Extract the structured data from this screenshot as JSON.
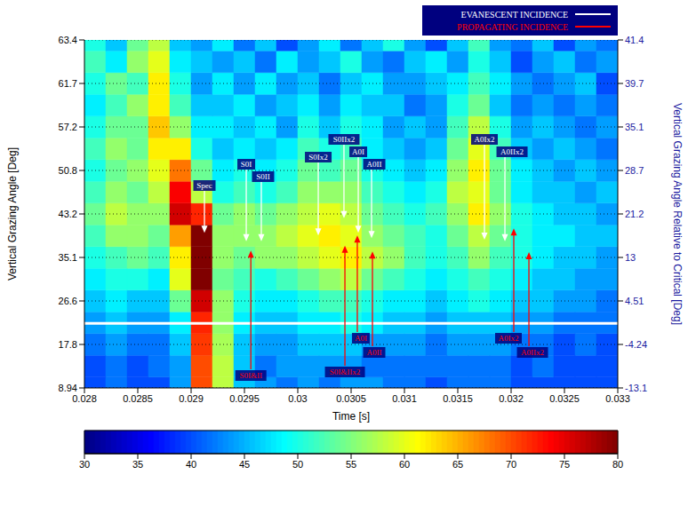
{
  "chart_data": {
    "type": "heatmap",
    "x_label": "Time [s]",
    "y_label": "Vertical Grazing Angle [Deg]",
    "y2_label": "Vertical Grazing Angle Relative to Critical [Deg]",
    "xlim": [
      0.028,
      0.033
    ],
    "xticks": [
      0.028,
      0.0285,
      0.029,
      0.0295,
      0.03,
      0.0305,
      0.031,
      0.0315,
      0.032,
      0.0325,
      0.033
    ],
    "x": [
      0.0281,
      0.0283,
      0.0285,
      0.0287,
      0.0289,
      0.0291,
      0.0293,
      0.0295,
      0.0297,
      0.0299,
      0.0301,
      0.0303,
      0.0305,
      0.0307,
      0.0309,
      0.0311,
      0.0313,
      0.0315,
      0.0317,
      0.0319,
      0.0321,
      0.0323,
      0.0325,
      0.0327,
      0.0329
    ],
    "y_categories": [
      "8.94",
      null,
      "17.8",
      null,
      "26.6",
      null,
      "35.1",
      null,
      "43.2",
      null,
      "50.8",
      null,
      "57.2",
      null,
      "61.7",
      null,
      "63.4"
    ],
    "y2_categories": [
      "-13.1",
      null,
      "-4.24",
      null,
      "4.51",
      null,
      "13",
      null,
      "21.2",
      null,
      "28.7",
      null,
      "35.1",
      null,
      "39.7",
      null,
      "41.4"
    ],
    "cells": [
      [
        40,
        42,
        40,
        40,
        44,
        70,
        58,
        46,
        44,
        42,
        44,
        42,
        44,
        44,
        42,
        42,
        40,
        42,
        42,
        42,
        40,
        40,
        40,
        40,
        40
      ],
      [
        40,
        42,
        40,
        42,
        44,
        70,
        58,
        46,
        42,
        44,
        44,
        44,
        44,
        42,
        42,
        42,
        42,
        42,
        42,
        42,
        40,
        42,
        40,
        40,
        40
      ],
      [
        42,
        44,
        42,
        42,
        46,
        71,
        57,
        46,
        44,
        44,
        46,
        46,
        46,
        44,
        44,
        44,
        42,
        44,
        44,
        44,
        42,
        42,
        40,
        42,
        40
      ],
      [
        44,
        46,
        44,
        44,
        48,
        72,
        56,
        48,
        46,
        46,
        48,
        48,
        50,
        48,
        46,
        46,
        44,
        46,
        46,
        46,
        44,
        44,
        42,
        42,
        42
      ],
      [
        46,
        48,
        46,
        46,
        54,
        76,
        56,
        50,
        48,
        48,
        50,
        52,
        52,
        50,
        48,
        48,
        46,
        48,
        50,
        48,
        46,
        46,
        44,
        44,
        42
      ],
      [
        48,
        50,
        50,
        48,
        60,
        80,
        54,
        52,
        50,
        52,
        54,
        56,
        58,
        54,
        52,
        50,
        48,
        50,
        52,
        50,
        48,
        46,
        46,
        44,
        44
      ],
      [
        50,
        52,
        54,
        52,
        62,
        80,
        56,
        54,
        56,
        56,
        58,
        60,
        62,
        58,
        56,
        52,
        50,
        52,
        56,
        52,
        50,
        48,
        46,
        46,
        44
      ],
      [
        52,
        56,
        56,
        54,
        66,
        80,
        56,
        56,
        56,
        58,
        60,
        62,
        60,
        56,
        54,
        52,
        50,
        54,
        58,
        54,
        50,
        48,
        48,
        46,
        46
      ],
      [
        54,
        58,
        56,
        56,
        76,
        72,
        54,
        56,
        54,
        56,
        58,
        60,
        58,
        54,
        52,
        50,
        52,
        56,
        62,
        56,
        50,
        48,
        46,
        46,
        44
      ],
      [
        52,
        56,
        54,
        58,
        74,
        58,
        50,
        52,
        50,
        52,
        56,
        56,
        56,
        52,
        50,
        48,
        50,
        58,
        60,
        54,
        48,
        46,
        46,
        44,
        46
      ],
      [
        50,
        54,
        56,
        60,
        68,
        54,
        48,
        50,
        48,
        50,
        54,
        52,
        54,
        50,
        48,
        46,
        48,
        56,
        62,
        54,
        48,
        46,
        44,
        46,
        44
      ],
      [
        52,
        56,
        54,
        62,
        62,
        50,
        46,
        48,
        46,
        48,
        52,
        50,
        52,
        48,
        46,
        44,
        46,
        54,
        60,
        52,
        46,
        44,
        46,
        44,
        42
      ],
      [
        50,
        54,
        54,
        64,
        56,
        48,
        48,
        46,
        48,
        44,
        50,
        46,
        50,
        48,
        44,
        46,
        44,
        52,
        58,
        50,
        44,
        46,
        44,
        42,
        44
      ],
      [
        48,
        52,
        56,
        62,
        52,
        46,
        46,
        48,
        44,
        46,
        48,
        44,
        48,
        46,
        46,
        42,
        44,
        50,
        54,
        46,
        42,
        44,
        42,
        44,
        42
      ],
      [
        50,
        54,
        52,
        62,
        50,
        44,
        48,
        44,
        48,
        44,
        46,
        42,
        46,
        48,
        44,
        44,
        46,
        48,
        52,
        48,
        44,
        42,
        44,
        46,
        40
      ],
      [
        52,
        48,
        56,
        60,
        48,
        46,
        44,
        46,
        42,
        48,
        44,
        46,
        50,
        44,
        42,
        46,
        48,
        44,
        50,
        46,
        40,
        44,
        46,
        42,
        44
      ],
      [
        50,
        46,
        54,
        58,
        46,
        44,
        48,
        42,
        46,
        40,
        44,
        48,
        42,
        46,
        50,
        44,
        40,
        46,
        52,
        44,
        42,
        46,
        40,
        44,
        42
      ]
    ],
    "colorbar_range": [
      30,
      80
    ],
    "colorbar_ticks": [
      30,
      35,
      40,
      45,
      50,
      55,
      60,
      65,
      70,
      75,
      80
    ],
    "grid": true,
    "legend": "top-right",
    "series": [
      {
        "name": "EVANESCENT INCIDENCE",
        "color": "#ffffff"
      },
      {
        "name": "PROPAGATING INCIDENCE",
        "color": "#ff0000"
      }
    ],
    "reference_lines": [
      {
        "axis": "y2",
        "value": 0,
        "color": "#ffffff"
      }
    ],
    "annotations": [
      {
        "label": "Spec",
        "x": 0.029125,
        "y": 39.7,
        "series": "EVANESCENT INCIDENCE"
      },
      {
        "label": "S0I",
        "x": 0.029517,
        "y": 38.1,
        "series": "EVANESCENT INCIDENCE"
      },
      {
        "label": "S0II",
        "x": 0.029658,
        "y": 38.1,
        "series": "EVANESCENT INCIDENCE"
      },
      {
        "label": "S0Ix2",
        "x": 0.030192,
        "y": 39.2,
        "series": "EVANESCENT INCIDENCE"
      },
      {
        "label": "S0IIx2",
        "x": 0.030433,
        "y": 42.4,
        "series": "EVANESCENT INCIDENCE"
      },
      {
        "label": "A0I",
        "x": 0.030567,
        "y": 39.7,
        "series": "EVANESCENT INCIDENCE"
      },
      {
        "label": "A0II",
        "x": 0.030692,
        "y": 38.7,
        "series": "EVANESCENT INCIDENCE"
      },
      {
        "label": "A0Ix2",
        "x": 0.03175,
        "y": 38.4,
        "series": "EVANESCENT INCIDENCE"
      },
      {
        "label": "A0IIx2",
        "x": 0.031942,
        "y": 38.1,
        "series": "EVANESCENT INCIDENCE"
      },
      {
        "label": "S0I&II",
        "x": 0.02956,
        "y": 36.4,
        "series": "PROPAGATING INCIDENCE"
      },
      {
        "label": "S0I&IIx2",
        "x": 0.030442,
        "y": 37.3,
        "series": "PROPAGATING INCIDENCE"
      },
      {
        "label": "A0I",
        "x": 0.030558,
        "y": 39.2,
        "series": "PROPAGATING INCIDENCE"
      },
      {
        "label": "A0II",
        "x": 0.0307,
        "y": 36.2,
        "series": "PROPAGATING INCIDENCE"
      },
      {
        "label": "A0Ix2",
        "x": 0.032025,
        "y": 40.5,
        "series": "PROPAGATING INCIDENCE"
      },
      {
        "label": "A0IIx2",
        "x": 0.032167,
        "y": 36.1,
        "series": "PROPAGATING INCIDENCE"
      }
    ]
  }
}
